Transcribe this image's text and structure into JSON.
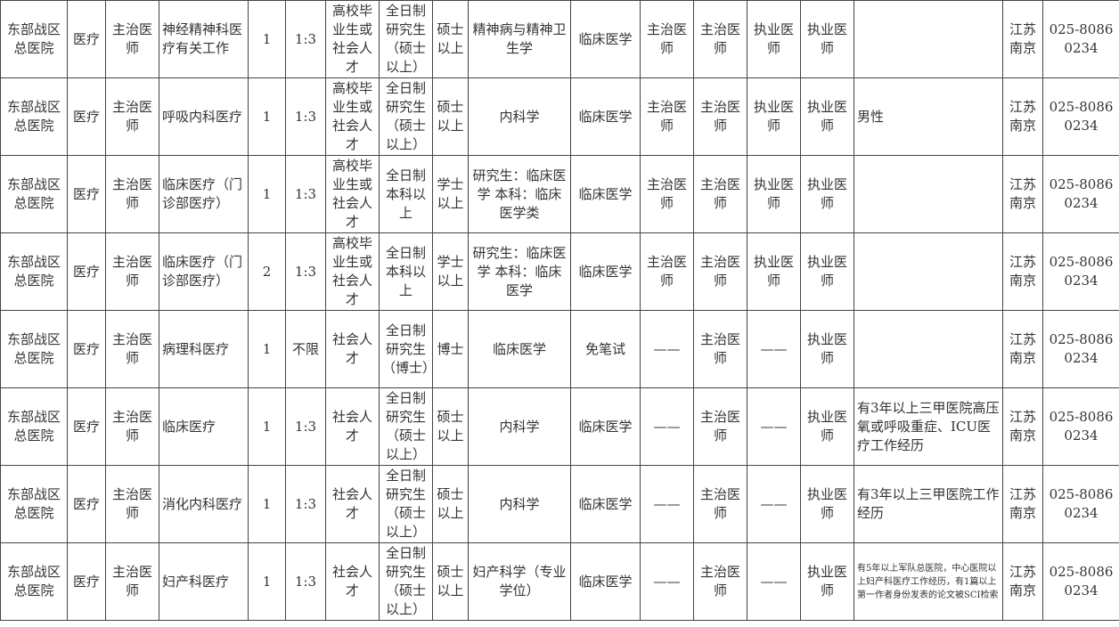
{
  "rows": [
    [
      "东部战区总医院",
      "医疗",
      "主治医师",
      "神经精神科医疗有关工作",
      "1",
      "1:3",
      "高校毕业生或社会人才",
      "全日制研究生（硕士以上）",
      "硕士以上",
      "精神病与精神卫生学",
      "临床医学",
      "主治医师",
      "主治医师",
      "执业医师",
      "执业医师",
      "",
      "江苏南京",
      "025-80860234"
    ],
    [
      "东部战区总医院",
      "医疗",
      "主治医师",
      "呼吸内科医疗",
      "1",
      "1:3",
      "高校毕业生或社会人才",
      "全日制研究生（硕士以上）",
      "硕士以上",
      "内科学",
      "临床医学",
      "主治医师",
      "主治医师",
      "执业医师",
      "执业医师",
      "男性",
      "江苏南京",
      "025-80860234"
    ],
    [
      "东部战区总医院",
      "医疗",
      "主治医师",
      "临床医疗（门诊部医疗）",
      "1",
      "1:3",
      "高校毕业生或社会人才",
      "全日制本科以上",
      "学士以上",
      "研究生：临床医学 本科：临床医学类",
      "临床医学",
      "主治医师",
      "主治医师",
      "执业医师",
      "执业医师",
      "",
      "江苏南京",
      "025-80860234"
    ],
    [
      "东部战区总医院",
      "医疗",
      "主治医师",
      "临床医疗（门诊部医疗）",
      "2",
      "1:3",
      "高校毕业生或社会人才",
      "全日制本科以上",
      "学士以上",
      "研究生：临床医学 本科：临床医学",
      "临床医学",
      "主治医师",
      "主治医师",
      "执业医师",
      "执业医师",
      "",
      "江苏南京",
      "025-80860234"
    ],
    [
      "东部战区总医院",
      "医疗",
      "主治医师",
      "病理科医疗",
      "1",
      "不限",
      "社会人才",
      "全日制研究生（博士）",
      "博士",
      "临床医学",
      "免笔试",
      "——",
      "主治医师",
      "——",
      "执业医师",
      "",
      "江苏南京",
      "025-80860234"
    ],
    [
      "东部战区总医院",
      "医疗",
      "主治医师",
      "临床医疗",
      "1",
      "1:3",
      "社会人才",
      "全日制研究生（硕士以上）",
      "硕士以上",
      "内科学",
      "临床医学",
      "——",
      "主治医师",
      "——",
      "执业医师",
      "有3年以上三甲医院高压氧或呼吸重症、ICU医疗工作经历",
      "江苏南京",
      "025-80860234"
    ],
    [
      "东部战区总医院",
      "医疗",
      "主治医师",
      "消化内科医疗",
      "1",
      "1:3",
      "社会人才",
      "全日制研究生（硕士以上）",
      "硕士以上",
      "内科学",
      "临床医学",
      "——",
      "主治医师",
      "——",
      "执业医师",
      "有3年以上三甲医院工作经历",
      "江苏南京",
      "025-80860234"
    ],
    [
      "东部战区总医院",
      "医疗",
      "主治医师",
      "妇产科医疗",
      "1",
      "1:3",
      "社会人才",
      "全日制研究生（硕士以上）",
      "硕士以上",
      "妇产科学（专业学位）",
      "临床医学",
      "——",
      "主治医师",
      "——",
      "执业医师",
      "有5年以上军队总医院，中心医院以上妇产科医疗工作经历，有1篇以上第一作者身份发表的论文被SCI检索",
      "江苏南京",
      "025-80860234"
    ]
  ]
}
